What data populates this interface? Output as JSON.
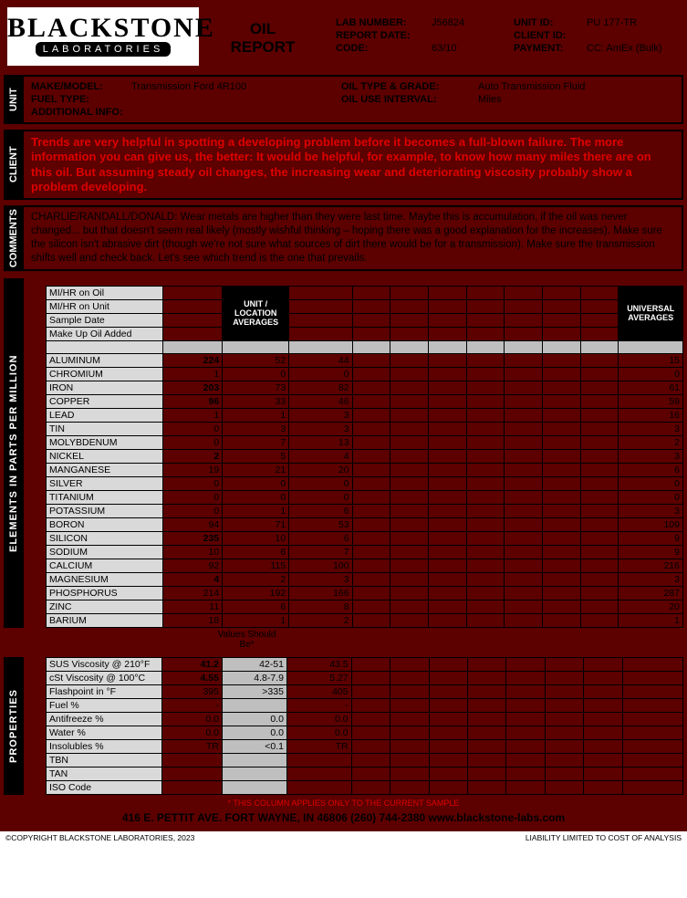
{
  "header": {
    "title_line1": "OIL",
    "title_line2": "REPORT",
    "lab_number_lbl": "LAB NUMBER:",
    "lab_number": "J56824",
    "report_date_lbl": "REPORT DATE:",
    "report_date": "",
    "code_lbl": "CODE:",
    "code": "63/10",
    "unit_id_lbl": "UNIT ID:",
    "unit_id": "PU 177-TR",
    "client_id_lbl": "CLIENT ID:",
    "client_id": "",
    "payment_lbl": "PAYMENT:",
    "payment": "CC: AmEx (Bulk)",
    "logo_name": "BLACKSTONE",
    "logo_sub": "LABORATORIES"
  },
  "unit_section": {
    "label": "UNIT",
    "make_lbl": "MAKE/MODEL:",
    "make": "Transmission Ford 4R100",
    "fuel_lbl": "FUEL TYPE:",
    "fuel": "",
    "addl_lbl": "ADDITIONAL INFO:",
    "addl": "",
    "oiltype_lbl": "OIL TYPE & GRADE:",
    "oiltype": "Auto Transmission Fluid",
    "oiluse_lbl": "OIL USE INTERVAL:",
    "oiluse": "Miles"
  },
  "client_section": {
    "label": "CLIENT",
    "text": "Trends are very helpful in spotting a developing problem before it becomes a full-blown failure. The more information you can give us, the better: It would be helpful, for example, to know how many miles there are on this oil. But assuming steady oil changes, the increasing wear and deteriorating viscosity probably show a problem developing."
  },
  "comments_section": {
    "label": "COMMENTS",
    "text": "CHARLIE/RANDALL/DONALD:  Wear metals are higher than they were last time. Maybe this is accumulation, if the oil was never changed... but that doesn't seem real likely (mostly wishful thinking – hoping there was a good explanation for the increases). Make sure the silicon isn't abrasive dirt (though we're not sure what sources of dirt there would be for a transmission). Make sure the transmission shifts well and check back. Let's see which trend is the one that prevails."
  },
  "elements_label": "ELEMENTS  IN  PARTS  PER  MILLION",
  "properties_label": "PROPERTIES",
  "top_rows": [
    "MI/HR on Oil",
    "MI/HR on Unit",
    "Sample Date",
    "Make Up Oil Added"
  ],
  "col_hdr1": "UNIT / LOCATION AVERAGES",
  "col_hdr2": "UNIVERSAL AVERAGES",
  "elements": [
    {
      "n": "ALUMINUM",
      "v": [
        "224",
        "52",
        "44"
      ],
      "ua": "15",
      "hl": [
        0
      ]
    },
    {
      "n": "CHROMIUM",
      "v": [
        "1",
        "0",
        "0"
      ],
      "ua": "0"
    },
    {
      "n": "IRON",
      "v": [
        "203",
        "73",
        "82"
      ],
      "ua": "61",
      "hl": [
        0
      ]
    },
    {
      "n": "COPPER",
      "v": [
        "96",
        "33",
        "46"
      ],
      "ua": "59",
      "hl": [
        0
      ]
    },
    {
      "n": "LEAD",
      "v": [
        "1",
        "1",
        "3"
      ],
      "ua": "16"
    },
    {
      "n": "TIN",
      "v": [
        "0",
        "3",
        "3"
      ],
      "ua": "3"
    },
    {
      "n": "MOLYBDENUM",
      "v": [
        "0",
        "7",
        "13"
      ],
      "ua": "2"
    },
    {
      "n": "NICKEL",
      "v": [
        "2",
        "5",
        "4"
      ],
      "ua": "3",
      "hl": [
        0
      ]
    },
    {
      "n": "MANGANESE",
      "v": [
        "19",
        "21",
        "20"
      ],
      "ua": "6"
    },
    {
      "n": "SILVER",
      "v": [
        "0",
        "0",
        "0"
      ],
      "ua": "0"
    },
    {
      "n": "TITANIUM",
      "v": [
        "0",
        "0",
        "0"
      ],
      "ua": "0"
    },
    {
      "n": "POTASSIUM",
      "v": [
        "0",
        "1",
        "6"
      ],
      "ua": "3"
    },
    {
      "n": "BORON",
      "v": [
        "94",
        "71",
        "53"
      ],
      "ua": "109"
    },
    {
      "n": "SILICON",
      "v": [
        "235",
        "10",
        "6"
      ],
      "ua": "9",
      "hl": [
        0
      ]
    },
    {
      "n": "SODIUM",
      "v": [
        "10",
        "6",
        "7"
      ],
      "ua": "9"
    },
    {
      "n": "CALCIUM",
      "v": [
        "92",
        "115",
        "100"
      ],
      "ua": "216"
    },
    {
      "n": "MAGNESIUM",
      "v": [
        "4",
        "2",
        "3"
      ],
      "ua": "3",
      "hl": [
        0
      ]
    },
    {
      "n": "PHOSPHORUS",
      "v": [
        "214",
        "192",
        "166"
      ],
      "ua": "287"
    },
    {
      "n": "ZINC",
      "v": [
        "11",
        "6",
        "8"
      ],
      "ua": "20"
    },
    {
      "n": "BARIUM",
      "v": [
        "18",
        "1",
        "2"
      ],
      "ua": "1"
    }
  ],
  "values_should": "Values Should Be*",
  "properties": [
    {
      "n": "SUS Viscosity @ 210°F",
      "v": [
        "41.2",
        "42-51",
        "43.5"
      ],
      "hl": [
        0
      ]
    },
    {
      "n": "cSt Viscosity @ 100°C",
      "v": [
        "4.55",
        "4.8-7.9",
        "5.27"
      ],
      "hl": [
        0
      ]
    },
    {
      "n": "Flashpoint in °F",
      "v": [
        "395",
        "&gt;335",
        "405"
      ]
    },
    {
      "n": "Fuel %",
      "v": [
        "-",
        "",
        "-"
      ]
    },
    {
      "n": "Antifreeze %",
      "v": [
        "0.0",
        "0.0",
        "0.0"
      ]
    },
    {
      "n": "Water %",
      "v": [
        "0.0",
        "0.0",
        "0.0"
      ]
    },
    {
      "n": "Insolubles %",
      "v": [
        "TR",
        "&lt;0.1",
        "TR"
      ]
    },
    {
      "n": "TBN",
      "v": [
        "",
        "",
        ""
      ]
    },
    {
      "n": "TAN",
      "v": [
        "",
        "",
        ""
      ]
    },
    {
      "n": "ISO Code",
      "v": [
        "",
        "",
        ""
      ]
    }
  ],
  "footer_note": "* THIS COLUMN APPLIES ONLY TO THE CURRENT SAMPLE",
  "footer_addr": "416 E. PETTIT AVE.    FORT WAYNE, IN  46806     (260) 744-2380     www.blackstone-labs.com",
  "copyright_l": "©COPYRIGHT BLACKSTONE LABORATORIES, 2023",
  "copyright_r": "LIABILITY LIMITED TO COST OF ANALYSIS"
}
